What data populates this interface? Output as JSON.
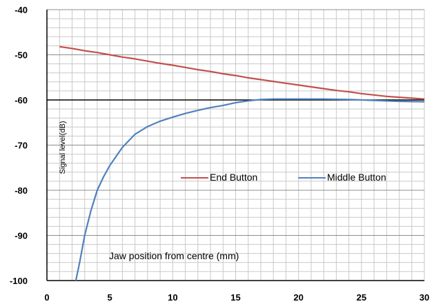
{
  "chart_data": {
    "type": "line",
    "title": "",
    "xlabel": "Jaw position from centre (mm)",
    "ylabel": "Signal level(dB)",
    "xlim": [
      0,
      30
    ],
    "ylim": [
      -100,
      -40
    ],
    "x_ticks": [
      "0",
      "5",
      "10",
      "15",
      "20",
      "25",
      "30"
    ],
    "y_ticks": [
      "-40",
      "-50",
      "-60",
      "-70",
      "-80",
      "-90",
      "-100"
    ],
    "grid": true,
    "legend_position": "center-right",
    "series": [
      {
        "name": "End Button",
        "color": "#c0504d",
        "x": [
          1,
          2,
          3,
          4,
          5,
          6,
          7,
          8,
          9,
          10,
          11,
          12,
          13,
          14,
          15,
          16,
          17,
          18,
          19,
          20,
          21,
          22,
          23,
          24,
          25,
          26,
          27,
          28,
          29,
          30
        ],
        "y": [
          -48.2,
          -48.6,
          -49.1,
          -49.5,
          -50.0,
          -50.5,
          -50.9,
          -51.4,
          -51.9,
          -52.3,
          -52.8,
          -53.3,
          -53.7,
          -54.2,
          -54.6,
          -55.1,
          -55.5,
          -55.9,
          -56.3,
          -56.7,
          -57.1,
          -57.5,
          -57.9,
          -58.2,
          -58.6,
          -58.9,
          -59.2,
          -59.4,
          -59.6,
          -59.8
        ]
      },
      {
        "name": "Middle Button",
        "color": "#4f81bd",
        "x": [
          2.3,
          2.6,
          3.0,
          3.5,
          4.0,
          4.5,
          5.0,
          6.0,
          7.0,
          8.0,
          9.0,
          10.0,
          11.0,
          12.0,
          13.0,
          14.0,
          15.0,
          16.0,
          17.0,
          18.0,
          20.0,
          22.0,
          24.0,
          26.0,
          28.0,
          30.0
        ],
        "y": [
          -100,
          -96,
          -90,
          -84.5,
          -80,
          -77,
          -74.5,
          -70.5,
          -67.6,
          -65.9,
          -64.7,
          -63.8,
          -63.0,
          -62.3,
          -61.7,
          -61.2,
          -60.6,
          -60.2,
          -59.9,
          -59.8,
          -59.8,
          -59.8,
          -59.9,
          -60.1,
          -60.3,
          -60.4
        ]
      }
    ]
  }
}
